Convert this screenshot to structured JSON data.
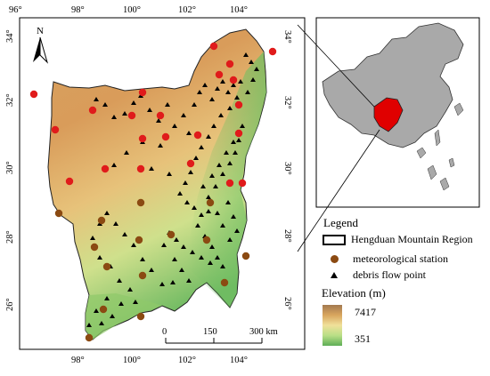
{
  "map": {
    "north_label": "N",
    "lon_ticks_top": [
      "96°",
      "98°",
      "100°",
      "102°",
      "104°"
    ],
    "lon_ticks_bottom": [
      "98°",
      "100°",
      "102°",
      "104°"
    ],
    "lat_ticks_left": [
      "34°",
      "32°",
      "30°",
      "28°",
      "26°"
    ],
    "lat_ticks_right": [
      "34°",
      "32°",
      "30°",
      "28°",
      "26°"
    ],
    "scale_labels": [
      "0",
      "150",
      "300 km"
    ]
  },
  "legend": {
    "title": "Legend",
    "region_label": "Hengduan Mountain Region",
    "station_label": "meteorological station",
    "debris_label": "debris flow point",
    "elevation_title": "Elevation (m)",
    "elevation_max": "7417",
    "elevation_min": "351"
  },
  "colors": {
    "station_red": "#e01b1b",
    "station_brown": "#8b4a12",
    "region_highlight": "#e00000",
    "china_fill": "#a9a9a9"
  }
}
